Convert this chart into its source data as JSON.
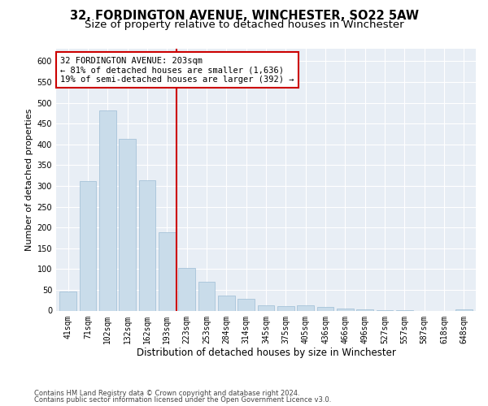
{
  "title": "32, FORDINGTON AVENUE, WINCHESTER, SO22 5AW",
  "subtitle": "Size of property relative to detached houses in Winchester",
  "xlabel": "Distribution of detached houses by size in Winchester",
  "ylabel": "Number of detached properties",
  "categories": [
    "41sqm",
    "71sqm",
    "102sqm",
    "132sqm",
    "162sqm",
    "193sqm",
    "223sqm",
    "253sqm",
    "284sqm",
    "314sqm",
    "345sqm",
    "375sqm",
    "405sqm",
    "436sqm",
    "466sqm",
    "496sqm",
    "527sqm",
    "557sqm",
    "587sqm",
    "618sqm",
    "648sqm"
  ],
  "values": [
    45,
    312,
    482,
    413,
    313,
    188,
    103,
    70,
    37,
    28,
    13,
    11,
    12,
    8,
    5,
    3,
    1,
    1,
    0,
    0,
    3
  ],
  "bar_color": "#c9dcea",
  "bar_edge_color": "#9dbdd4",
  "vline_position": 5.5,
  "vline_color": "#cc0000",
  "annotation_text": "32 FORDINGTON AVENUE: 203sqm\n← 81% of detached houses are smaller (1,636)\n19% of semi-detached houses are larger (392) →",
  "annotation_box_facecolor": "#ffffff",
  "annotation_box_edgecolor": "#cc0000",
  "ylim": [
    0,
    630
  ],
  "yticks": [
    0,
    50,
    100,
    150,
    200,
    250,
    300,
    350,
    400,
    450,
    500,
    550,
    600
  ],
  "background_color": "#e8eef5",
  "footer_line1": "Contains HM Land Registry data © Crown copyright and database right 2024.",
  "footer_line2": "Contains public sector information licensed under the Open Government Licence v3.0.",
  "title_fontsize": 10.5,
  "subtitle_fontsize": 9.5,
  "xlabel_fontsize": 8.5,
  "ylabel_fontsize": 8,
  "tick_fontsize": 7,
  "annotation_fontsize": 7.5,
  "footer_fontsize": 6
}
